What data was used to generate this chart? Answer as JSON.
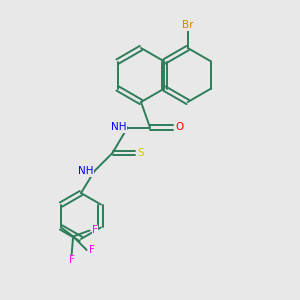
{
  "background_color": "#e8e8e8",
  "bond_color": "#2d7d5a",
  "colors": {
    "Br": "#cc8800",
    "O": "#ff0000",
    "N": "#0000ff",
    "S": "#cccc00",
    "F": "#ff00ff",
    "H": "#2d7d5a",
    "C": "#2d7d5a"
  },
  "figsize": [
    3.0,
    3.0
  ],
  "dpi": 100
}
